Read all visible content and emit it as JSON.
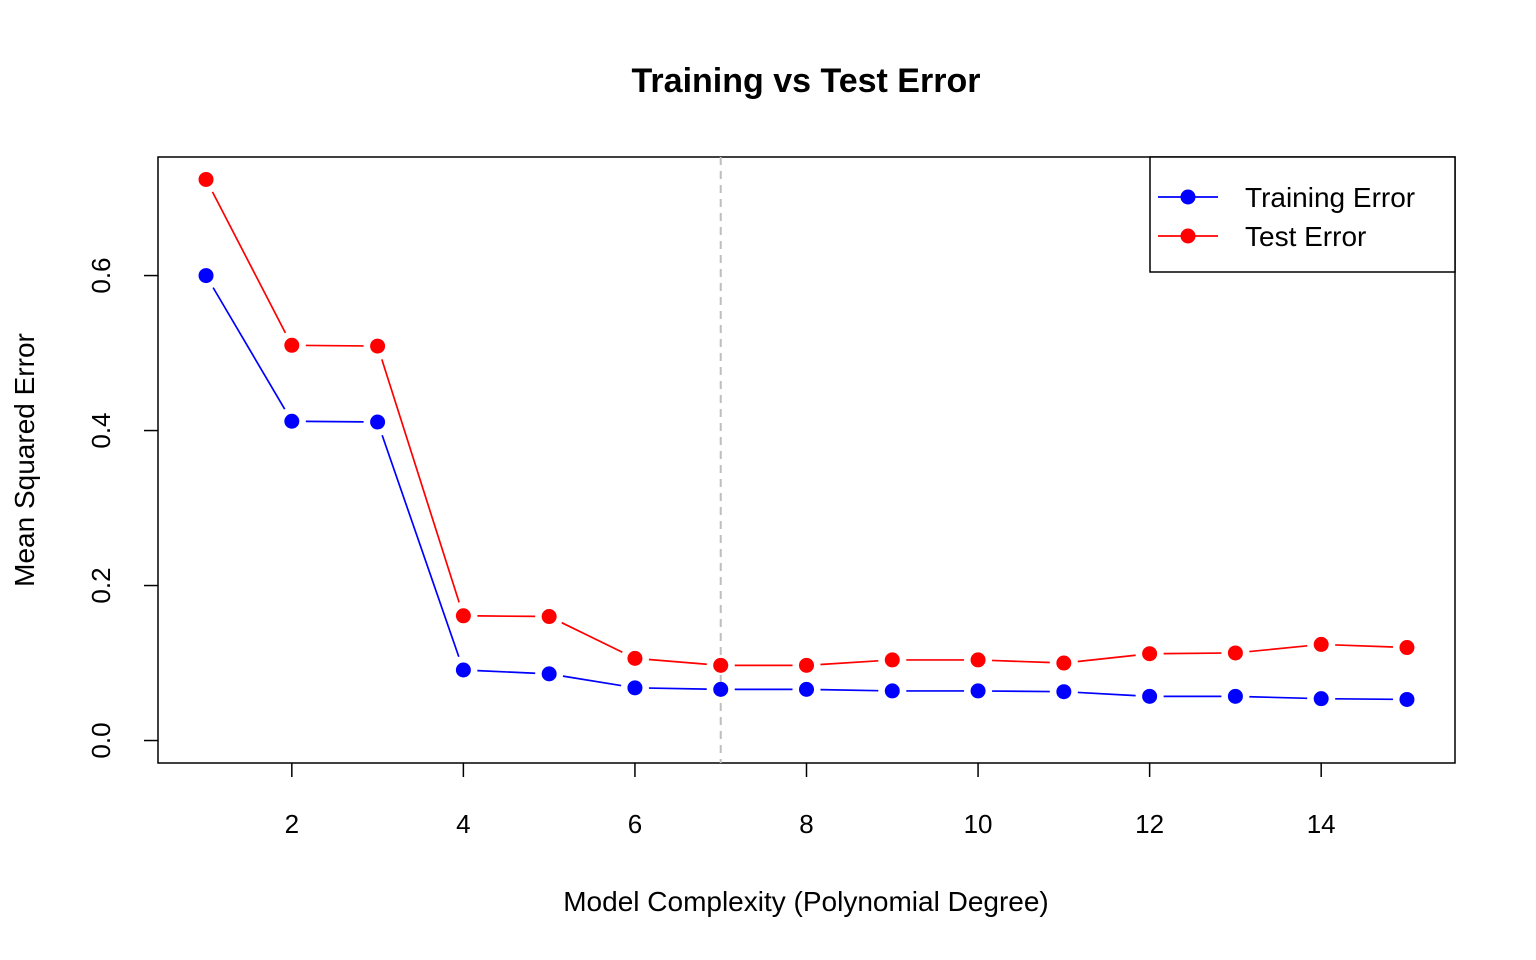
{
  "chart_data": {
    "type": "line",
    "title": "Training vs Test Error",
    "xlabel": "Model Complexity (Polynomial Degree)",
    "ylabel": "Mean Squared Error",
    "xlim": [
      0.44,
      15.56
    ],
    "ylim": [
      -0.029,
      0.753
    ],
    "x_ticks": [
      2,
      4,
      6,
      8,
      10,
      12,
      14
    ],
    "x_tick_labels": [
      "2",
      "4",
      "6",
      "8",
      "10",
      "12",
      "14"
    ],
    "y_ticks": [
      0.0,
      0.2,
      0.4,
      0.6
    ],
    "y_tick_labels": [
      "0.0",
      "0.2",
      "0.4",
      "0.6"
    ],
    "grid": false,
    "legend_position": "top-right",
    "x": [
      1,
      2,
      3,
      4,
      5,
      6,
      7,
      8,
      9,
      10,
      11,
      12,
      13,
      14,
      15
    ],
    "series": [
      {
        "name": "Training Error",
        "color": "#0000ff",
        "values": [
          0.6,
          0.412,
          0.411,
          0.091,
          0.086,
          0.068,
          0.066,
          0.066,
          0.064,
          0.064,
          0.063,
          0.057,
          0.057,
          0.054,
          0.053
        ]
      },
      {
        "name": "Test Error",
        "color": "#ff0000",
        "values": [
          0.724,
          0.51,
          0.509,
          0.161,
          0.16,
          0.106,
          0.097,
          0.097,
          0.104,
          0.104,
          0.1,
          0.112,
          0.113,
          0.124,
          0.12
        ]
      }
    ],
    "annotations": [
      {
        "type": "vline",
        "x": 7,
        "color": "#bebebe",
        "style": "dashed"
      }
    ]
  }
}
